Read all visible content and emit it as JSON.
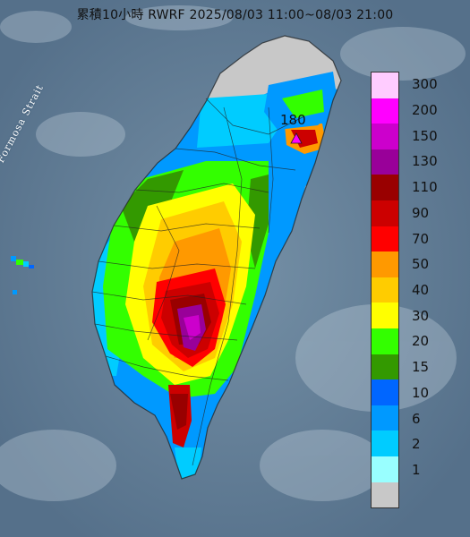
{
  "title": "累積10小時 RWRF 2025/08/03 11:00~08/03 21:00",
  "strait_label": "Formosa Strait",
  "peak_label": "180",
  "legend": {
    "levels": [
      {
        "label": "300",
        "color": "#ffccff"
      },
      {
        "label": "200",
        "color": "#ff00ff"
      },
      {
        "label": "150",
        "color": "#cc00cc"
      },
      {
        "label": "130",
        "color": "#990099"
      },
      {
        "label": "110",
        "color": "#990000"
      },
      {
        "label": "90",
        "color": "#cc0000"
      },
      {
        "label": "70",
        "color": "#ff0000"
      },
      {
        "label": "50",
        "color": "#ff9900"
      },
      {
        "label": "40",
        "color": "#ffcc00"
      },
      {
        "label": "30",
        "color": "#ffff00"
      },
      {
        "label": "20",
        "color": "#33ff00"
      },
      {
        "label": "15",
        "color": "#339900"
      },
      {
        "label": "10",
        "color": "#0066ff"
      },
      {
        "label": "6",
        "color": "#0099ff"
      },
      {
        "label": "2",
        "color": "#00ccff"
      },
      {
        "label": "1",
        "color": "#99ffff"
      },
      {
        "label": "",
        "color": "#c8c8c8"
      }
    ]
  }
}
